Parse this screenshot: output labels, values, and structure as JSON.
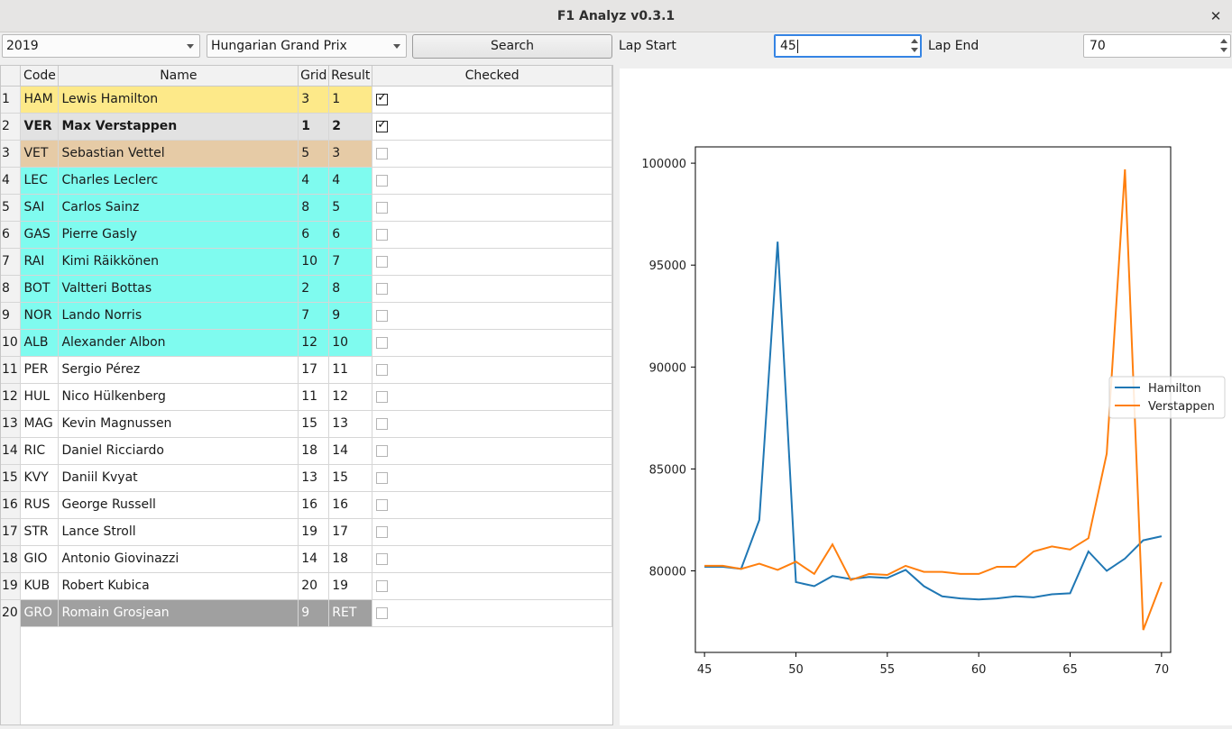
{
  "window": {
    "title": "F1 Analyz v0.3.1",
    "close_glyph": "✕"
  },
  "toolbar": {
    "year": "2019",
    "race": "Hungarian Grand Prix",
    "search_label": "Search",
    "lap_start_label": "Lap Start",
    "lap_start_value": "45",
    "lap_end_label": "Lap End",
    "lap_end_value": "70"
  },
  "table": {
    "headers": [
      "Code",
      "Name",
      "Grid",
      "Result",
      "Checked"
    ],
    "rows": [
      {
        "n": "1",
        "code": "HAM",
        "name": "Lewis Hamilton",
        "grid": "3",
        "result": "1",
        "checked": true,
        "bg": "#fde989",
        "bold": false,
        "fg": "#1a1a1a"
      },
      {
        "n": "2",
        "code": "VER",
        "name": "Max Verstappen",
        "grid": "1",
        "result": "2",
        "checked": true,
        "bg": "#e2e2e2",
        "bold": true,
        "fg": "#1a1a1a"
      },
      {
        "n": "3",
        "code": "VET",
        "name": "Sebastian Vettel",
        "grid": "5",
        "result": "3",
        "checked": false,
        "bg": "#e6cba6",
        "bold": false,
        "fg": "#1a1a1a"
      },
      {
        "n": "4",
        "code": "LEC",
        "name": "Charles Leclerc",
        "grid": "4",
        "result": "4",
        "checked": false,
        "bg": "#7ffbef",
        "bold": false,
        "fg": "#1a1a1a"
      },
      {
        "n": "5",
        "code": "SAI",
        "name": "Carlos Sainz",
        "grid": "8",
        "result": "5",
        "checked": false,
        "bg": "#7ffbef",
        "bold": false,
        "fg": "#1a1a1a"
      },
      {
        "n": "6",
        "code": "GAS",
        "name": "Pierre Gasly",
        "grid": "6",
        "result": "6",
        "checked": false,
        "bg": "#7ffbef",
        "bold": false,
        "fg": "#1a1a1a"
      },
      {
        "n": "7",
        "code": "RAI",
        "name": "Kimi Räikkönen",
        "grid": "10",
        "result": "7",
        "checked": false,
        "bg": "#7ffbef",
        "bold": false,
        "fg": "#1a1a1a"
      },
      {
        "n": "8",
        "code": "BOT",
        "name": "Valtteri Bottas",
        "grid": "2",
        "result": "8",
        "checked": false,
        "bg": "#7ffbef",
        "bold": false,
        "fg": "#1a1a1a"
      },
      {
        "n": "9",
        "code": "NOR",
        "name": "Lando Norris",
        "grid": "7",
        "result": "9",
        "checked": false,
        "bg": "#7ffbef",
        "bold": false,
        "fg": "#1a1a1a"
      },
      {
        "n": "10",
        "code": "ALB",
        "name": "Alexander Albon",
        "grid": "12",
        "result": "10",
        "checked": false,
        "bg": "#7ffbef",
        "bold": false,
        "fg": "#1a1a1a"
      },
      {
        "n": "11",
        "code": "PER",
        "name": "Sergio Pérez",
        "grid": "17",
        "result": "11",
        "checked": false,
        "bg": "#ffffff",
        "bold": false,
        "fg": "#1a1a1a"
      },
      {
        "n": "12",
        "code": "HUL",
        "name": "Nico Hülkenberg",
        "grid": "11",
        "result": "12",
        "checked": false,
        "bg": "#ffffff",
        "bold": false,
        "fg": "#1a1a1a"
      },
      {
        "n": "13",
        "code": "MAG",
        "name": "Kevin Magnussen",
        "grid": "15",
        "result": "13",
        "checked": false,
        "bg": "#ffffff",
        "bold": false,
        "fg": "#1a1a1a"
      },
      {
        "n": "14",
        "code": "RIC",
        "name": "Daniel Ricciardo",
        "grid": "18",
        "result": "14",
        "checked": false,
        "bg": "#ffffff",
        "bold": false,
        "fg": "#1a1a1a"
      },
      {
        "n": "15",
        "code": "KVY",
        "name": "Daniil Kvyat",
        "grid": "13",
        "result": "15",
        "checked": false,
        "bg": "#ffffff",
        "bold": false,
        "fg": "#1a1a1a"
      },
      {
        "n": "16",
        "code": "RUS",
        "name": "George Russell",
        "grid": "16",
        "result": "16",
        "checked": false,
        "bg": "#ffffff",
        "bold": false,
        "fg": "#1a1a1a"
      },
      {
        "n": "17",
        "code": "STR",
        "name": "Lance Stroll",
        "grid": "19",
        "result": "17",
        "checked": false,
        "bg": "#ffffff",
        "bold": false,
        "fg": "#1a1a1a"
      },
      {
        "n": "18",
        "code": "GIO",
        "name": "Antonio Giovinazzi",
        "grid": "14",
        "result": "18",
        "checked": false,
        "bg": "#ffffff",
        "bold": false,
        "fg": "#1a1a1a"
      },
      {
        "n": "19",
        "code": "KUB",
        "name": "Robert Kubica",
        "grid": "20",
        "result": "19",
        "checked": false,
        "bg": "#ffffff",
        "bold": false,
        "fg": "#1a1a1a"
      },
      {
        "n": "20",
        "code": "GRO",
        "name": "Romain Grosjean",
        "grid": "9",
        "result": "RET",
        "checked": false,
        "bg": "#a0a0a0",
        "bold": false,
        "fg": "#ffffff"
      }
    ]
  },
  "chart_data": {
    "type": "line",
    "title": "",
    "xlabel": "",
    "ylabel": "",
    "xlim": [
      44.5,
      70.5
    ],
    "ylim": [
      76000,
      100800
    ],
    "xticks": [
      "45",
      "50",
      "55",
      "60",
      "65",
      "70"
    ],
    "yticks": [
      "80000",
      "85000",
      "90000",
      "95000",
      "100000"
    ],
    "legend_position": "right",
    "grid": false,
    "x": [
      45,
      46,
      47,
      48,
      49,
      50,
      51,
      52,
      53,
      54,
      55,
      56,
      57,
      58,
      59,
      60,
      61,
      62,
      63,
      64,
      65,
      66,
      67,
      68,
      69,
      70
    ],
    "series": [
      {
        "name": "Hamilton",
        "color": "#1f77b4",
        "values": [
          80200,
          80200,
          80100,
          82500,
          96150,
          79450,
          79250,
          79750,
          79600,
          79700,
          79650,
          80050,
          79250,
          78750,
          78650,
          78600,
          78650,
          78750,
          78700,
          78850,
          78900,
          80950,
          80000,
          80600,
          81500,
          81700
        ]
      },
      {
        "name": "Verstappen",
        "color": "#ff7f0e",
        "values": [
          80250,
          80250,
          80100,
          80350,
          80050,
          80450,
          79850,
          81300,
          79550,
          79850,
          79800,
          80250,
          79950,
          79950,
          79850,
          79850,
          80200,
          80200,
          80950,
          81200,
          81050,
          81600,
          85750,
          99700,
          77100,
          79450
        ]
      }
    ]
  }
}
